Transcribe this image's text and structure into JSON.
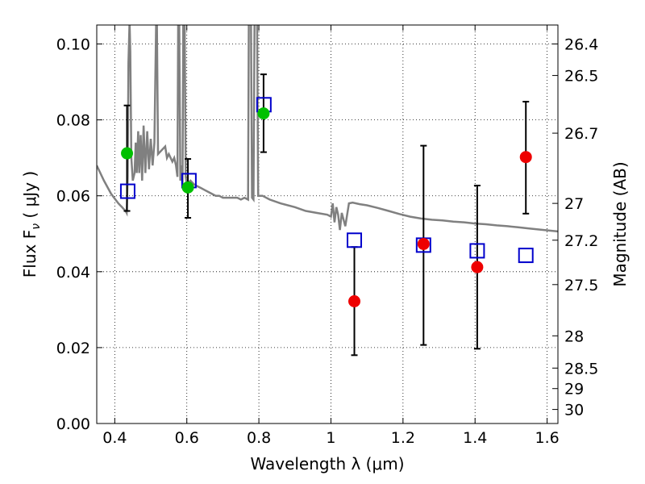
{
  "chart_data": {
    "type": "scatter",
    "xlabel": "Wavelength  λ (μm)",
    "ylabel": "Flux  F",
    "ylabel_sub": "ν",
    "ylabel_unit": "  ( μJy )",
    "y2label": "Magnitude (AB)",
    "xlim": [
      0.35,
      1.63
    ],
    "ylim": [
      0.0,
      0.105
    ],
    "grid": true,
    "x_ticks": [
      "0.4",
      "0.6",
      "0.8",
      "1",
      "1.2",
      "1.4",
      "1.6"
    ],
    "y_ticks": [
      "0.00",
      "0.02",
      "0.04",
      "0.06",
      "0.08",
      "0.10"
    ],
    "y2_ticks": [
      {
        "label": "26.4",
        "flux": 0.1
      },
      {
        "label": "26.5",
        "flux": 0.0917
      },
      {
        "label": "26.7",
        "flux": 0.0765
      },
      {
        "label": "27",
        "flux": 0.058
      },
      {
        "label": "27.2",
        "flux": 0.0483
      },
      {
        "label": "27.5",
        "flux": 0.0366
      },
      {
        "label": "28",
        "flux": 0.0231
      },
      {
        "label": "28.5",
        "flux": 0.0146
      },
      {
        "label": "29",
        "flux": 0.0092
      },
      {
        "label": "30",
        "flux": 0.0037
      }
    ],
    "colors": {
      "model": "#808080",
      "model_points": "#0000cc",
      "detections": "#00c000",
      "upper_limits": "#ee0000",
      "errorbars": "#000000"
    },
    "model_flux": [
      {
        "x": 0.436,
        "y": 0.0612
      },
      {
        "x": 0.606,
        "y": 0.064
      },
      {
        "x": 0.814,
        "y": 0.084
      },
      {
        "x": 1.065,
        "y": 0.0483
      },
      {
        "x": 1.257,
        "y": 0.047
      },
      {
        "x": 1.406,
        "y": 0.0455
      },
      {
        "x": 1.541,
        "y": 0.0443
      }
    ],
    "observed": [
      {
        "x": 0.434,
        "y": 0.0712,
        "err_lo": 0.056,
        "err_hi": 0.0838,
        "kind": "detection"
      },
      {
        "x": 0.603,
        "y": 0.0622,
        "err_lo": 0.0542,
        "err_hi": 0.0697,
        "kind": "detection"
      },
      {
        "x": 0.813,
        "y": 0.0817,
        "err_lo": 0.0715,
        "err_hi": 0.092,
        "kind": "detection"
      },
      {
        "x": 1.065,
        "y": 0.0322,
        "err_lo": 0.018,
        "err_hi": 0.0465,
        "kind": "limit"
      },
      {
        "x": 1.257,
        "y": 0.0473,
        "err_lo": 0.0207,
        "err_hi": 0.0732,
        "kind": "limit"
      },
      {
        "x": 1.406,
        "y": 0.0412,
        "err_lo": 0.0197,
        "err_hi": 0.0627,
        "kind": "limit"
      },
      {
        "x": 1.541,
        "y": 0.0702,
        "err_lo": 0.0553,
        "err_hi": 0.0848,
        "kind": "limit"
      }
    ],
    "spectrum": [
      [
        0.35,
        0.068
      ],
      [
        0.37,
        0.064
      ],
      [
        0.39,
        0.0605
      ],
      [
        0.41,
        0.058
      ],
      [
        0.42,
        0.057
      ],
      [
        0.425,
        0.0565
      ],
      [
        0.43,
        0.056
      ],
      [
        0.433,
        0.0555
      ],
      [
        0.436,
        0.065
      ],
      [
        0.438,
        0.095
      ],
      [
        0.441,
        0.106
      ],
      [
        0.443,
        0.098
      ],
      [
        0.446,
        0.07
      ],
      [
        0.45,
        0.064
      ],
      [
        0.455,
        0.066
      ],
      [
        0.458,
        0.074
      ],
      [
        0.461,
        0.066
      ],
      [
        0.465,
        0.077
      ],
      [
        0.468,
        0.066
      ],
      [
        0.472,
        0.076
      ],
      [
        0.476,
        0.064
      ],
      [
        0.48,
        0.0785
      ],
      [
        0.485,
        0.066
      ],
      [
        0.49,
        0.077
      ],
      [
        0.495,
        0.067
      ],
      [
        0.5,
        0.075
      ],
      [
        0.505,
        0.068
      ],
      [
        0.51,
        0.074
      ],
      [
        0.515,
        0.106
      ],
      [
        0.517,
        0.106
      ],
      [
        0.52,
        0.071
      ],
      [
        0.53,
        0.072
      ],
      [
        0.54,
        0.073
      ],
      [
        0.545,
        0.07
      ],
      [
        0.55,
        0.071
      ],
      [
        0.56,
        0.069
      ],
      [
        0.565,
        0.07
      ],
      [
        0.57,
        0.068
      ],
      [
        0.574,
        0.065
      ],
      [
        0.576,
        0.106
      ],
      [
        0.579,
        0.106
      ],
      [
        0.582,
        0.064
      ],
      [
        0.585,
        0.068
      ],
      [
        0.588,
        0.062
      ],
      [
        0.59,
        0.106
      ],
      [
        0.594,
        0.106
      ],
      [
        0.597,
        0.065
      ],
      [
        0.6,
        0.063
      ],
      [
        0.61,
        0.064
      ],
      [
        0.62,
        0.063
      ],
      [
        0.63,
        0.0625
      ],
      [
        0.64,
        0.062
      ],
      [
        0.65,
        0.0615
      ],
      [
        0.66,
        0.061
      ],
      [
        0.67,
        0.0605
      ],
      [
        0.68,
        0.06
      ],
      [
        0.69,
        0.06
      ],
      [
        0.7,
        0.0595
      ],
      [
        0.72,
        0.0595
      ],
      [
        0.74,
        0.0595
      ],
      [
        0.75,
        0.059
      ],
      [
        0.76,
        0.0595
      ],
      [
        0.77,
        0.059
      ],
      [
        0.772,
        0.106
      ],
      [
        0.778,
        0.106
      ],
      [
        0.781,
        0.0595
      ],
      [
        0.785,
        0.059
      ],
      [
        0.788,
        0.106
      ],
      [
        0.795,
        0.106
      ],
      [
        0.798,
        0.06
      ],
      [
        0.81,
        0.06
      ],
      [
        0.83,
        0.059
      ],
      [
        0.86,
        0.058
      ],
      [
        0.9,
        0.057
      ],
      [
        0.93,
        0.056
      ],
      [
        0.96,
        0.0555
      ],
      [
        0.99,
        0.055
      ],
      [
        1.0,
        0.0545
      ],
      [
        1.005,
        0.058
      ],
      [
        1.01,
        0.053
      ],
      [
        1.015,
        0.057
      ],
      [
        1.02,
        0.055
      ],
      [
        1.025,
        0.051
      ],
      [
        1.03,
        0.0555
      ],
      [
        1.04,
        0.052
      ],
      [
        1.05,
        0.058
      ],
      [
        1.06,
        0.0582
      ],
      [
        1.08,
        0.0578
      ],
      [
        1.1,
        0.0575
      ],
      [
        1.13,
        0.0568
      ],
      [
        1.16,
        0.056
      ],
      [
        1.19,
        0.0552
      ],
      [
        1.22,
        0.0545
      ],
      [
        1.25,
        0.054
      ],
      [
        1.28,
        0.0537
      ],
      [
        1.31,
        0.0535
      ],
      [
        1.34,
        0.0532
      ],
      [
        1.37,
        0.053
      ],
      [
        1.4,
        0.0527
      ],
      [
        1.43,
        0.0525
      ],
      [
        1.46,
        0.0522
      ],
      [
        1.49,
        0.052
      ],
      [
        1.52,
        0.0517
      ],
      [
        1.55,
        0.0514
      ],
      [
        1.58,
        0.0511
      ],
      [
        1.61,
        0.0508
      ],
      [
        1.63,
        0.0506
      ]
    ]
  }
}
